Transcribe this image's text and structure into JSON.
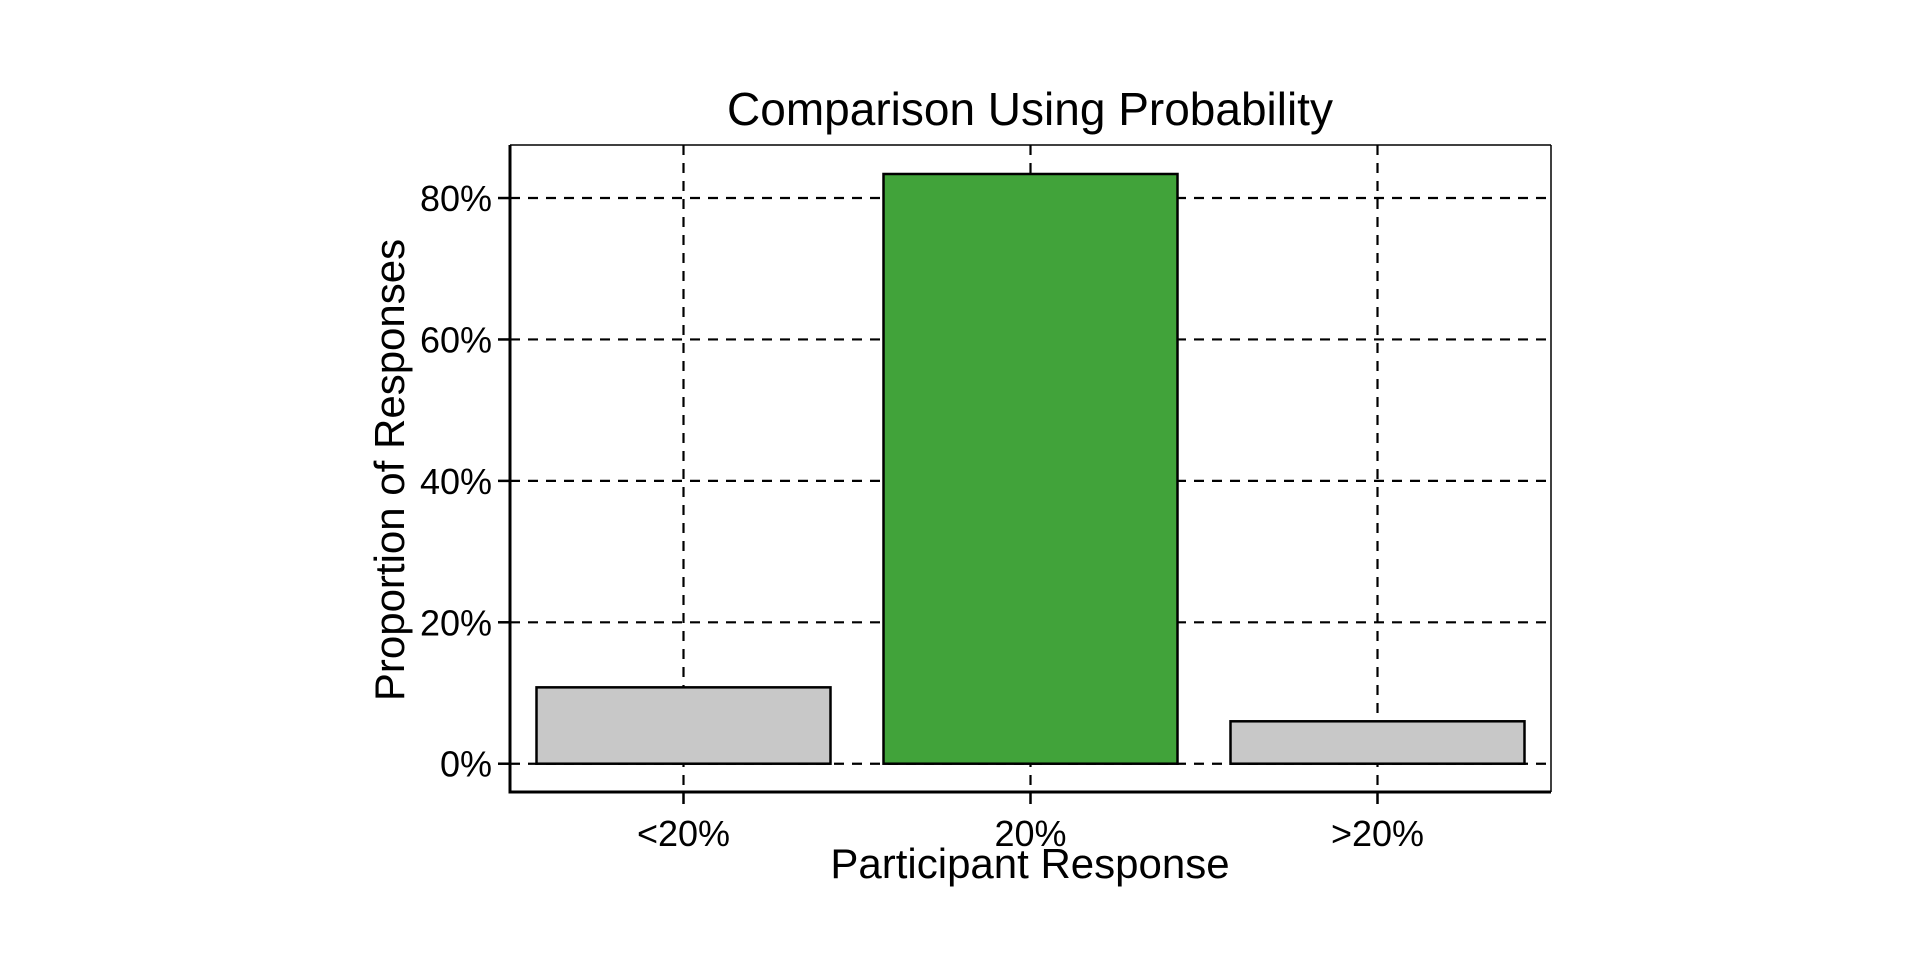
{
  "chart_data": {
    "type": "bar",
    "title": "Comparison Using Probability",
    "xlabel": "Participant Response",
    "ylabel": "Proportion of Responses",
    "categories": [
      "<20%",
      "20%",
      ">20%"
    ],
    "values": [
      0.108,
      0.834,
      0.06
    ],
    "value_unit": "fraction of responses",
    "ylim": [
      -0.04,
      0.875
    ],
    "yticks": [
      0,
      0.2,
      0.4,
      0.6,
      0.8
    ],
    "ytick_labels": [
      "0%",
      "20%",
      "40%",
      "60%",
      "80%"
    ],
    "bar_colors": [
      "#c8c8c8",
      "#41a33a",
      "#c8c8c8"
    ],
    "bar_edge_color": "#000000",
    "grid": true,
    "grid_style": "dashed",
    "legend": "none"
  }
}
